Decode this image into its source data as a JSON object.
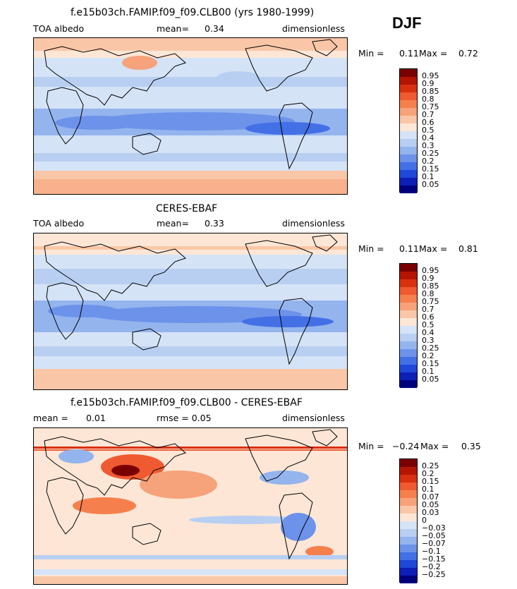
{
  "season": "DJF",
  "panels": [
    {
      "title": "f.e15b03ch.FAMIP.f09_f09.CLB00 (yrs 1980-1999)",
      "left_label": "TOA albedo",
      "mean_label": "mean=",
      "mean_value": "0.34",
      "units": "dimensionless",
      "min_label": "Min =",
      "min_value": "0.11",
      "max_label": "Max =",
      "max_value": "0.72",
      "colorbar": {
        "labels": [
          "0.95",
          "0.9",
          "0.85",
          "0.8",
          "0.75",
          "0.7",
          "0.6",
          "0.5",
          "0.4",
          "0.3",
          "0.25",
          "0.2",
          "0.15",
          "0.1",
          "0.05"
        ],
        "colors": [
          "#7a0000",
          "#b31500",
          "#d93010",
          "#ef5a30",
          "#f5804e",
          "#f6a27a",
          "#f9c7a8",
          "#fde6d6",
          "#d5e3f6",
          "#b8cff2",
          "#94b4ee",
          "#6d92ea",
          "#4470e6",
          "#1f47d8",
          "#0e1fb5",
          "#00007f"
        ]
      }
    },
    {
      "title": "CERES-EBAF",
      "left_label": "TOA albedo",
      "mean_label": "mean=",
      "mean_value": "0.33",
      "units": "dimensionless",
      "min_label": "Min =",
      "min_value": "0.11",
      "max_label": "Max =",
      "max_value": "0.81",
      "colorbar": {
        "labels": [
          "0.95",
          "0.9",
          "0.85",
          "0.8",
          "0.75",
          "0.7",
          "0.6",
          "0.5",
          "0.4",
          "0.3",
          "0.25",
          "0.2",
          "0.15",
          "0.1",
          "0.05"
        ],
        "colors": [
          "#7a0000",
          "#b31500",
          "#d93010",
          "#ef5a30",
          "#f5804e",
          "#f6a27a",
          "#f9c7a8",
          "#fde6d6",
          "#d5e3f6",
          "#b8cff2",
          "#94b4ee",
          "#6d92ea",
          "#4470e6",
          "#1f47d8",
          "#0e1fb5",
          "#00007f"
        ]
      }
    },
    {
      "title": "f.e15b03ch.FAMIP.f09_f09.CLB00 - CERES-EBAF",
      "left_label": "mean =",
      "mean_label": "0.01",
      "mean_value": "rmse =   0.05",
      "units": "dimensionless",
      "min_label": "Min =",
      "min_value": "−0.24",
      "max_label": "Max =",
      "max_value": "0.35",
      "colorbar": {
        "labels": [
          "0.25",
          "0.2",
          "0.15",
          "0.1",
          "0.07",
          "0.05",
          "0.03",
          "0",
          "−0.03",
          "−0.05",
          "−0.07",
          "−0.1",
          "−0.15",
          "−0.2",
          "−0.25"
        ],
        "colors": [
          "#7a0000",
          "#b31500",
          "#d93010",
          "#ef5a30",
          "#f5804e",
          "#f6a27a",
          "#f9c7a8",
          "#fde6d6",
          "#d5e3f6",
          "#b8cff2",
          "#94b4ee",
          "#6d92ea",
          "#4470e6",
          "#1f47d8",
          "#0e1fb5",
          "#00007f"
        ]
      }
    }
  ]
}
